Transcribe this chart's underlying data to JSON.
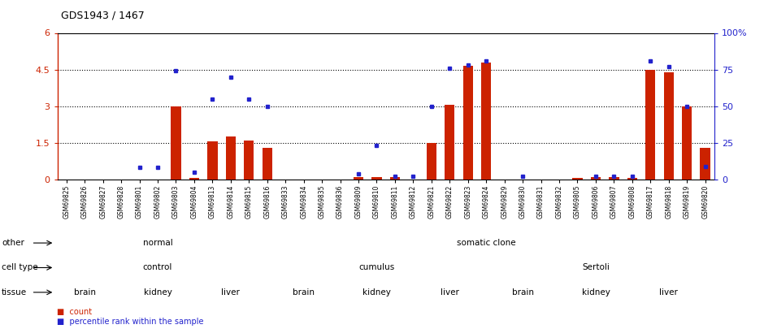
{
  "title": "GDS1943 / 1467",
  "samples": [
    "GSM69825",
    "GSM69826",
    "GSM69827",
    "GSM69828",
    "GSM69801",
    "GSM69802",
    "GSM69803",
    "GSM69804",
    "GSM69813",
    "GSM69814",
    "GSM69815",
    "GSM69816",
    "GSM69833",
    "GSM69834",
    "GSM69835",
    "GSM69836",
    "GSM69809",
    "GSM69810",
    "GSM69811",
    "GSM69812",
    "GSM69821",
    "GSM69822",
    "GSM69823",
    "GSM69824",
    "GSM69829",
    "GSM69830",
    "GSM69831",
    "GSM69832",
    "GSM69805",
    "GSM69806",
    "GSM69807",
    "GSM69808",
    "GSM69817",
    "GSM69818",
    "GSM69819",
    "GSM69820"
  ],
  "counts": [
    0,
    0,
    0,
    0,
    0,
    0,
    3.0,
    0.05,
    1.55,
    1.75,
    1.6,
    1.3,
    0,
    0,
    0,
    0,
    0.08,
    0.08,
    0.08,
    0,
    1.5,
    3.05,
    4.65,
    4.8,
    0,
    0,
    0,
    0,
    0.05,
    0.08,
    0.08,
    0.05,
    4.5,
    4.4,
    3.0,
    1.3
  ],
  "percentiles_pct": [
    null,
    null,
    null,
    null,
    8,
    8,
    74,
    5,
    55,
    70,
    55,
    50,
    null,
    null,
    null,
    null,
    4,
    23,
    2,
    2,
    50,
    76,
    78,
    81,
    null,
    2,
    null,
    null,
    null,
    2,
    2,
    2,
    81,
    77,
    50,
    9
  ],
  "ylim_left": [
    0,
    6
  ],
  "ylim_right": [
    0,
    100
  ],
  "yticks_left": [
    0,
    1.5,
    3.0,
    4.5,
    6.0
  ],
  "ytick_labels_left": [
    "0",
    "1.5",
    "3",
    "4.5",
    "6"
  ],
  "yticks_right_pct": [
    0,
    25,
    50,
    75,
    100
  ],
  "ytick_labels_right": [
    "0",
    "25",
    "50",
    "75",
    "100%"
  ],
  "bar_color": "#cc2200",
  "dot_color": "#2222cc",
  "hline_y_left": [
    1.5,
    3.0,
    4.5
  ],
  "other_groups": [
    {
      "label": "normal",
      "start": 0,
      "end": 11,
      "color": "#aaddaa"
    },
    {
      "label": "somatic clone",
      "start": 12,
      "end": 35,
      "color": "#55cc55"
    }
  ],
  "celltype_groups": [
    {
      "label": "control",
      "start": 0,
      "end": 11,
      "color": "#ccccee"
    },
    {
      "label": "cumulus",
      "start": 12,
      "end": 23,
      "color": "#9999cc"
    },
    {
      "label": "Sertoli",
      "start": 24,
      "end": 35,
      "color": "#7777bb"
    }
  ],
  "tissue_groups": [
    {
      "label": "brain",
      "start": 0,
      "end": 3,
      "color": "#ffcccc"
    },
    {
      "label": "kidney",
      "start": 4,
      "end": 7,
      "color": "#ee9999"
    },
    {
      "label": "liver",
      "start": 8,
      "end": 11,
      "color": "#cc6666"
    },
    {
      "label": "brain",
      "start": 12,
      "end": 15,
      "color": "#ffcccc"
    },
    {
      "label": "kidney",
      "start": 16,
      "end": 19,
      "color": "#ee9999"
    },
    {
      "label": "liver",
      "start": 20,
      "end": 23,
      "color": "#cc6666"
    },
    {
      "label": "brain",
      "start": 24,
      "end": 27,
      "color": "#ffcccc"
    },
    {
      "label": "kidney",
      "start": 28,
      "end": 31,
      "color": "#ee9999"
    },
    {
      "label": "liver",
      "start": 32,
      "end": 35,
      "color": "#cc6666"
    }
  ],
  "row_labels": [
    "other",
    "cell type",
    "tissue"
  ],
  "legend_items": [
    {
      "symbol": "s",
      "color": "#cc2200",
      "label": "count"
    },
    {
      "symbol": "s",
      "color": "#2222cc",
      "label": "percentile rank within the sample"
    }
  ]
}
